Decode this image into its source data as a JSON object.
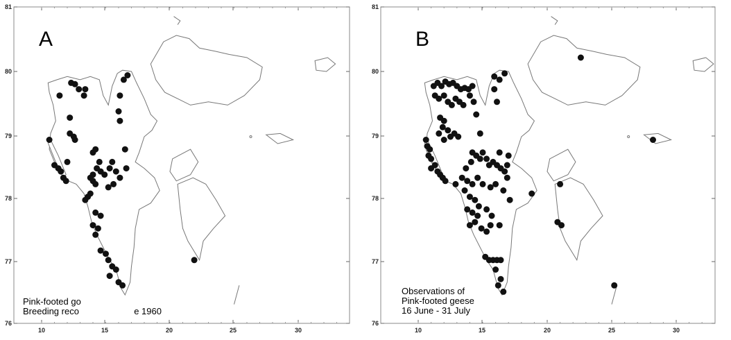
{
  "panels": [
    {
      "letter": "A",
      "caption_lines": [
        "Pink-footed go",
        "Breeding reco",
        "e 1960"
      ],
      "lat_labels": [
        "81",
        "80",
        "79",
        "78",
        "77",
        "76"
      ],
      "lon_labels": [
        "10",
        "15",
        "20",
        "25",
        "30"
      ]
    },
    {
      "letter": "B",
      "caption_lines": [
        "Observations of",
        "Pink-footed geese",
        "16 June - 31 July"
      ],
      "lat_labels": [
        "81",
        "80",
        "79",
        "78",
        "77",
        "76"
      ],
      "lon_labels": [
        "10",
        "15",
        "20",
        "25",
        "30"
      ]
    }
  ],
  "map_extent": {
    "lon": [
      9,
      35
    ],
    "lat": [
      76,
      81
    ]
  },
  "observations_a": [
    [
      10.6,
      78.9
    ],
    [
      11.0,
      78.5
    ],
    [
      11.3,
      78.45
    ],
    [
      11.5,
      78.4
    ],
    [
      11.7,
      78.3
    ],
    [
      11.9,
      78.25
    ],
    [
      12.0,
      78.55
    ],
    [
      11.4,
      79.6
    ],
    [
      12.3,
      79.8
    ],
    [
      12.6,
      79.78
    ],
    [
      12.9,
      79.7
    ],
    [
      13.4,
      79.7
    ],
    [
      13.3,
      79.6
    ],
    [
      12.2,
      79.25
    ],
    [
      12.2,
      79.0
    ],
    [
      12.5,
      78.95
    ],
    [
      12.6,
      78.9
    ],
    [
      14.0,
      78.7
    ],
    [
      14.2,
      78.75
    ],
    [
      14.5,
      78.55
    ],
    [
      14.3,
      78.45
    ],
    [
      14.0,
      78.35
    ],
    [
      13.8,
      78.3
    ],
    [
      14.0,
      78.25
    ],
    [
      14.2,
      78.2
    ],
    [
      14.6,
      78.4
    ],
    [
      14.9,
      78.35
    ],
    [
      15.3,
      78.45
    ],
    [
      15.5,
      78.55
    ],
    [
      15.8,
      78.4
    ],
    [
      16.1,
      78.3
    ],
    [
      15.6,
      78.2
    ],
    [
      15.2,
      78.15
    ],
    [
      16.6,
      78.45
    ],
    [
      16.5,
      78.75
    ],
    [
      16.4,
      79.85
    ],
    [
      16.7,
      79.92
    ],
    [
      16.1,
      79.6
    ],
    [
      16.0,
      79.35
    ],
    [
      16.1,
      79.2
    ],
    [
      13.6,
      78.0
    ],
    [
      13.4,
      77.95
    ],
    [
      13.8,
      78.05
    ],
    [
      14.2,
      77.75
    ],
    [
      14.6,
      77.7
    ],
    [
      14.0,
      77.55
    ],
    [
      14.4,
      77.5
    ],
    [
      14.2,
      77.4
    ],
    [
      14.6,
      77.15
    ],
    [
      15.0,
      77.1
    ],
    [
      15.2,
      77.0
    ],
    [
      15.5,
      76.9
    ],
    [
      15.8,
      76.85
    ],
    [
      15.3,
      76.75
    ],
    [
      16.0,
      76.65
    ],
    [
      16.3,
      76.6
    ],
    [
      21.9,
      77.0
    ]
  ],
  "observations_b": [
    [
      10.6,
      78.9
    ],
    [
      10.7,
      78.8
    ],
    [
      10.9,
      78.75
    ],
    [
      11.0,
      78.6
    ],
    [
      11.3,
      78.5
    ],
    [
      11.5,
      78.4
    ],
    [
      11.7,
      78.35
    ],
    [
      11.9,
      78.3
    ],
    [
      12.1,
      78.25
    ],
    [
      11.0,
      78.45
    ],
    [
      10.8,
      78.65
    ],
    [
      11.2,
      79.75
    ],
    [
      11.5,
      79.8
    ],
    [
      11.8,
      79.75
    ],
    [
      12.1,
      79.82
    ],
    [
      12.4,
      79.78
    ],
    [
      12.7,
      79.8
    ],
    [
      13.0,
      79.75
    ],
    [
      13.3,
      79.7
    ],
    [
      13.6,
      79.72
    ],
    [
      13.9,
      79.7
    ],
    [
      14.2,
      79.75
    ],
    [
      11.3,
      79.6
    ],
    [
      11.6,
      79.55
    ],
    [
      12.0,
      79.6
    ],
    [
      12.3,
      79.5
    ],
    [
      12.6,
      79.45
    ],
    [
      12.9,
      79.55
    ],
    [
      13.2,
      79.5
    ],
    [
      13.5,
      79.45
    ],
    [
      14.0,
      79.6
    ],
    [
      14.3,
      79.5
    ],
    [
      14.5,
      79.3
    ],
    [
      11.7,
      79.25
    ],
    [
      12.0,
      79.2
    ],
    [
      11.9,
      79.1
    ],
    [
      12.3,
      79.05
    ],
    [
      12.5,
      78.95
    ],
    [
      12.8,
      79.0
    ],
    [
      13.1,
      78.95
    ],
    [
      11.6,
      79.0
    ],
    [
      12.0,
      78.9
    ],
    [
      14.8,
      79.0
    ],
    [
      14.2,
      78.7
    ],
    [
      14.5,
      78.65
    ],
    [
      14.8,
      78.6
    ],
    [
      15.0,
      78.7
    ],
    [
      15.3,
      78.6
    ],
    [
      15.5,
      78.5
    ],
    [
      15.8,
      78.55
    ],
    [
      16.1,
      78.5
    ],
    [
      16.4,
      78.45
    ],
    [
      16.7,
      78.4
    ],
    [
      16.9,
      78.5
    ],
    [
      17.0,
      78.65
    ],
    [
      16.3,
      78.7
    ],
    [
      14.1,
      78.55
    ],
    [
      13.7,
      78.45
    ],
    [
      13.4,
      78.3
    ],
    [
      13.8,
      78.25
    ],
    [
      14.2,
      78.2
    ],
    [
      14.6,
      78.3
    ],
    [
      15.0,
      78.2
    ],
    [
      15.6,
      78.15
    ],
    [
      16.0,
      78.2
    ],
    [
      16.6,
      78.1
    ],
    [
      16.9,
      78.3
    ],
    [
      12.9,
      78.2
    ],
    [
      13.6,
      78.1
    ],
    [
      14.0,
      78.0
    ],
    [
      14.4,
      77.95
    ],
    [
      14.7,
      77.85
    ],
    [
      15.3,
      77.8
    ],
    [
      15.7,
      77.7
    ],
    [
      16.3,
      77.55
    ],
    [
      17.1,
      77.95
    ],
    [
      13.8,
      77.8
    ],
    [
      14.2,
      77.75
    ],
    [
      14.6,
      77.7
    ],
    [
      14.4,
      77.6
    ],
    [
      14.0,
      77.55
    ],
    [
      14.9,
      77.5
    ],
    [
      15.3,
      77.45
    ],
    [
      15.6,
      77.55
    ],
    [
      15.2,
      77.05
    ],
    [
      15.5,
      77.0
    ],
    [
      15.8,
      77.0
    ],
    [
      16.1,
      77.0
    ],
    [
      16.4,
      77.0
    ],
    [
      16.0,
      76.85
    ],
    [
      16.4,
      76.7
    ],
    [
      16.2,
      76.6
    ],
    [
      16.6,
      76.5
    ],
    [
      15.9,
      79.9
    ],
    [
      16.3,
      79.85
    ],
    [
      16.7,
      79.95
    ],
    [
      15.9,
      79.7
    ],
    [
      16.1,
      79.5
    ],
    [
      22.6,
      80.2
    ],
    [
      28.2,
      78.9
    ],
    [
      21.0,
      78.2
    ],
    [
      18.8,
      78.05
    ],
    [
      20.8,
      77.6
    ],
    [
      21.1,
      77.55
    ],
    [
      25.2,
      76.6
    ]
  ]
}
